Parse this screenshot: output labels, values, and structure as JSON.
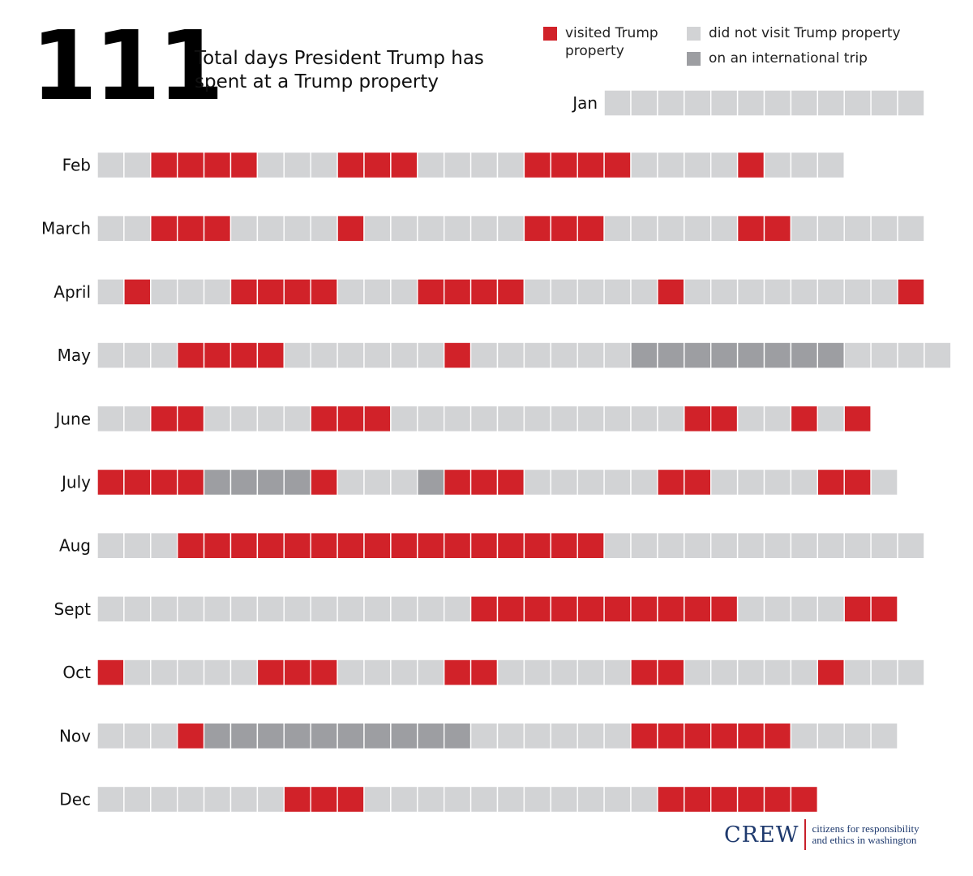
{
  "header": {
    "total_days": "111",
    "subtitle": "Total days President Trump has spent at a Trump property"
  },
  "legend": {
    "visited": "visited Trump property",
    "not_visited": "did not visit Trump property",
    "international": "on an international trip"
  },
  "colors": {
    "visited": "#d12229",
    "not_visited": "#d2d3d5",
    "international": "#9d9ea2"
  },
  "chart_data": {
    "type": "heatmap",
    "title": "111 Total days President Trump has spent at a Trump property",
    "legend_keys": {
      "V": "visited Trump property",
      "N": "did not visit Trump property",
      "I": "on an international trip"
    },
    "months": [
      {
        "name": "Jan",
        "start_day": 20,
        "days": "NNNNNNNNNNNN"
      },
      {
        "name": "Feb",
        "start_day": 1,
        "days": "NNVVVVNNNVVVNNNNVVVVNNNNVNNN"
      },
      {
        "name": "March",
        "start_day": 1,
        "days": "NNVVVNNNNVNNNNNNVVVNNNNNVVNNNNN"
      },
      {
        "name": "April",
        "start_day": 1,
        "days": "NVNNNVVVVNNNVVVVNNNNNVNNNNNNNNV"
      },
      {
        "name": "May",
        "start_day": 1,
        "days": "NNNVVVVNNNNNNVNNNNNNIIIIIIIINNNN"
      },
      {
        "name": "June",
        "start_day": 1,
        "days": "NNVVNNNNVVVNNNNNNNNNNNVVNNVNV"
      },
      {
        "name": "July",
        "start_day": 1,
        "days": "VVVVIIIIVNNNIVVVNNNNNVVNNNNVVN"
      },
      {
        "name": "Aug",
        "start_day": 1,
        "days": "NNNVVVVVVVVVVVVVVVVNNNNNNNNNNNN"
      },
      {
        "name": "Sept",
        "start_day": 1,
        "days": "NNNNNNNNNNNNNNVVVVVVVVVVNNNNVV"
      },
      {
        "name": "Oct",
        "start_day": 1,
        "days": "VNNNNNVVVNNNNVVNNNNNVVNNNNNVNNN"
      },
      {
        "name": "Nov",
        "start_day": 1,
        "days": "NNNVIIIIIIIIIINNNNNNVVVVVVNNNN"
      },
      {
        "name": "Dec",
        "start_day": 1,
        "days": "NNNNNNNVVVNNNNNNNNNNNVVVVVV"
      }
    ]
  },
  "footer": {
    "logo_text": "CREW",
    "tagline_line1": "citizens for responsibility",
    "tagline_line2": "and ethics in washington"
  }
}
